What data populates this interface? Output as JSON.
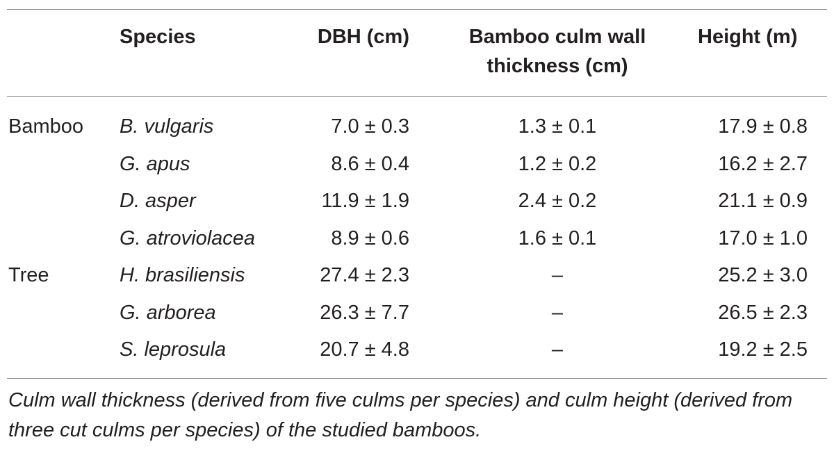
{
  "table": {
    "headers": {
      "species": "Species",
      "dbh": "DBH (cm)",
      "wall_line1": "Bamboo culm wall",
      "wall_line2": "thickness (cm)",
      "height": "Height (m)"
    },
    "rows": [
      {
        "group": "Bamboo",
        "species": "B. vulgaris",
        "dbh": "7.0 ± 0.3",
        "wall": "1.3 ± 0.1",
        "height": "17.9 ± 0.8"
      },
      {
        "group": "",
        "species": "G. apus",
        "dbh": "8.6 ± 0.4",
        "wall": "1.2 ± 0.2",
        "height": "16.2 ± 2.7"
      },
      {
        "group": "",
        "species": "D. asper",
        "dbh": "11.9 ± 1.9",
        "wall": "2.4 ± 0.2",
        "height": "21.1 ± 0.9"
      },
      {
        "group": "",
        "species": "G. atroviolacea",
        "dbh": "8.9 ± 0.6",
        "wall": "1.6 ± 0.1",
        "height": "17.0 ± 1.0"
      },
      {
        "group": "Tree",
        "species": "H. brasiliensis",
        "dbh": "27.4 ± 2.3",
        "wall": "–",
        "height": "25.2 ± 3.0"
      },
      {
        "group": "",
        "species": "G. arborea",
        "dbh": "26.3 ± 7.7",
        "wall": "–",
        "height": "26.5 ± 2.3"
      },
      {
        "group": "",
        "species": "S. leprosula",
        "dbh": "20.7 ± 4.8",
        "wall": "–",
        "height": "19.2 ± 2.5"
      }
    ],
    "footnote": "Culm wall thickness (derived from five culms per species) and culm height (derived from three cut culms per species) of the studied bamboos."
  }
}
